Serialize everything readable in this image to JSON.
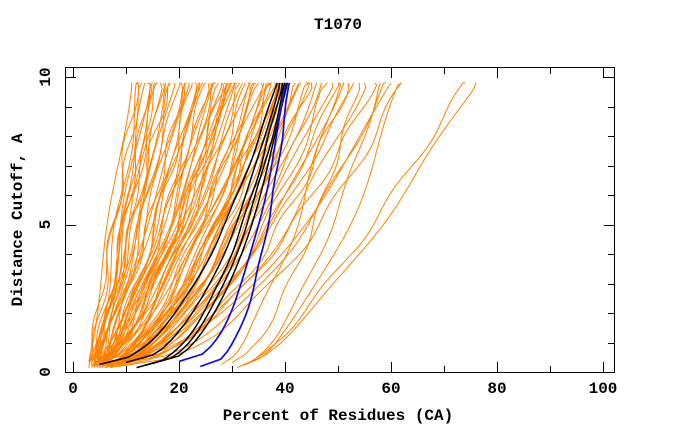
{
  "title": "T1070",
  "axes": {
    "x": {
      "label": "Percent of Residues (CA)",
      "min": 0,
      "max": 100,
      "major_ticks": [
        0,
        20,
        40,
        60,
        80,
        100
      ],
      "major_tick_labels": [
        "0",
        "20",
        "40",
        "60",
        "80",
        "100"
      ],
      "minor_tick_step": 10
    },
    "y": {
      "label": "Distance Cutoff, A",
      "min": 0,
      "max": 10,
      "major_ticks": [
        0,
        5,
        10
      ],
      "major_tick_labels": [
        "0",
        "5",
        "10"
      ],
      "minor_tick_step": 1
    }
  },
  "colors": {
    "background": "#ffffff",
    "axis": "#000000",
    "orange": "#ff8000",
    "black": "#000000",
    "blue": "#0b0bdd"
  },
  "chart_data": {
    "type": "line",
    "title": "T1070",
    "xlabel": "Percent of Residues (CA)",
    "ylabel": "Distance Cutoff, A",
    "xlim": [
      0,
      103
    ],
    "ylim": [
      0,
      10.35
    ],
    "grid": false,
    "legend": "none",
    "description": "Cumulative curves: percent of CA residues (x) within a distance cutoff in Angstroms (y); many orange model curves, a bundle of black curves and blue highlighted curves.",
    "curve_model": "percent(c) = p0 + (ptop - p0) * ((c - c0) / (cmax - c0)) ^ alpha",
    "cutoff_start": 0.2,
    "cutoff_end": 9.8,
    "groups": [
      {
        "name": "orange_curves",
        "color": "#ff8000",
        "stroke_width": 1,
        "curves": [
          [
            3,
            11,
            1.1
          ],
          [
            3.5,
            12,
            1.0
          ],
          [
            4,
            12.5,
            0.95
          ],
          [
            3,
            13,
            1.05
          ],
          [
            4.5,
            13.5,
            0.9
          ],
          [
            5,
            14,
            1.0
          ],
          [
            3.5,
            14.5,
            0.85
          ],
          [
            4,
            15,
            0.95
          ],
          [
            5.5,
            15.5,
            0.9
          ],
          [
            4.5,
            16,
            1.0
          ],
          [
            3,
            16.5,
            0.8
          ],
          [
            5,
            17,
            0.9
          ],
          [
            6,
            17.5,
            0.85
          ],
          [
            4,
            18,
            0.95
          ],
          [
            5.5,
            18.5,
            0.8
          ],
          [
            4.5,
            19,
            0.9
          ],
          [
            3,
            20,
            0.85
          ],
          [
            4,
            20.5,
            0.75
          ],
          [
            5,
            21,
            0.8
          ],
          [
            6,
            21.5,
            0.7
          ],
          [
            3.5,
            22,
            0.82
          ],
          [
            4.5,
            22.5,
            0.72
          ],
          [
            5.5,
            23,
            0.78
          ],
          [
            6.5,
            23.5,
            0.68
          ],
          [
            3,
            24,
            0.8
          ],
          [
            4,
            24.5,
            0.7
          ],
          [
            5,
            25,
            0.76
          ],
          [
            6,
            25.5,
            0.66
          ],
          [
            3.5,
            26,
            0.78
          ],
          [
            4.5,
            26.5,
            0.7
          ],
          [
            5.5,
            27,
            0.74
          ],
          [
            6.5,
            27.5,
            0.64
          ],
          [
            4,
            28,
            0.76
          ],
          [
            5,
            28.5,
            0.68
          ],
          [
            6,
            29,
            0.72
          ],
          [
            7,
            29.5,
            0.62
          ],
          [
            3.5,
            30,
            0.74
          ],
          [
            4.5,
            30.2,
            0.66
          ],
          [
            5.5,
            29.8,
            0.7
          ],
          [
            6.5,
            28.2,
            0.6
          ],
          [
            4,
            31,
            0.72
          ],
          [
            5,
            31.5,
            0.64
          ],
          [
            6,
            32,
            0.68
          ],
          [
            7,
            32.5,
            0.58
          ],
          [
            4.5,
            33,
            0.7
          ],
          [
            5.5,
            33.5,
            0.62
          ],
          [
            6.5,
            34,
            0.66
          ],
          [
            7.5,
            34.5,
            0.56
          ],
          [
            4,
            35,
            0.68
          ],
          [
            5,
            35.5,
            0.6
          ],
          [
            6,
            36,
            0.64
          ],
          [
            7,
            36.5,
            0.55
          ],
          [
            4.5,
            37,
            0.66
          ],
          [
            5.5,
            37.5,
            0.58
          ],
          [
            6.5,
            38,
            0.62
          ],
          [
            7.5,
            38.5,
            0.54
          ],
          [
            5,
            39,
            0.64
          ],
          [
            6,
            39.5,
            0.57
          ],
          [
            7,
            40,
            0.6
          ],
          [
            8,
            40.2,
            0.53
          ],
          [
            5.5,
            38.8,
            0.63
          ],
          [
            6.5,
            36.8,
            0.56
          ],
          [
            5,
            41,
            0.62
          ],
          [
            6,
            42,
            0.56
          ],
          [
            7,
            43,
            0.6
          ],
          [
            8,
            44,
            0.52
          ],
          [
            5.5,
            45,
            0.6
          ],
          [
            6.5,
            46,
            0.54
          ],
          [
            7.5,
            47,
            0.58
          ],
          [
            8.5,
            48,
            0.5
          ],
          [
            6,
            49,
            0.58
          ],
          [
            7,
            50,
            0.52
          ],
          [
            8,
            51,
            0.56
          ],
          [
            9,
            52,
            0.5
          ],
          [
            6.5,
            44.5,
            0.55
          ],
          [
            7.5,
            42.5,
            0.58
          ],
          [
            6,
            53,
            0.56
          ],
          [
            7,
            55,
            0.52
          ],
          [
            8,
            57,
            0.55
          ],
          [
            9,
            59,
            0.5
          ],
          [
            7.5,
            60,
            0.53
          ],
          [
            8.5,
            62,
            0.5
          ],
          [
            28,
            50,
            0.65
          ],
          [
            30,
            54,
            0.63
          ],
          [
            31,
            58,
            0.6
          ],
          [
            32,
            62,
            0.6
          ],
          [
            33,
            74,
            0.8
          ],
          [
            34,
            76,
            0.78
          ]
        ]
      },
      {
        "name": "black_curves",
        "color": "#000000",
        "stroke_width": 1.5,
        "curves": [
          [
            5,
            38.5,
            0.5
          ],
          [
            10,
            39,
            0.48
          ],
          [
            12,
            39.5,
            0.47
          ],
          [
            13.5,
            40,
            0.46
          ],
          [
            15,
            40.5,
            0.45
          ]
        ]
      },
      {
        "name": "blue_curves",
        "color": "#0b0bdd",
        "stroke_width": 1.7,
        "curves": [
          [
            20,
            40.2,
            0.42
          ],
          [
            24,
            40.8,
            0.4
          ]
        ]
      }
    ]
  }
}
